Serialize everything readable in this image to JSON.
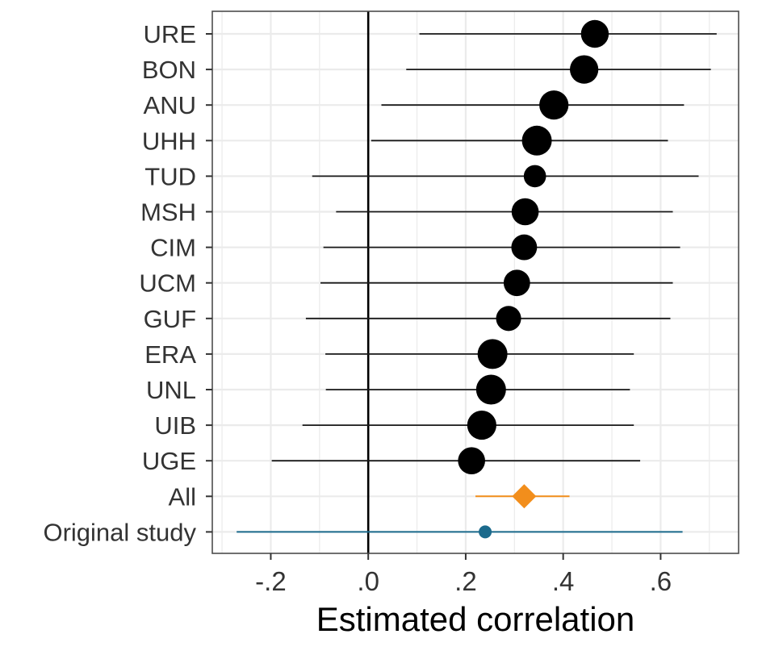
{
  "chart_data": {
    "type": "forest",
    "title": "",
    "xlabel": "Estimated correlation",
    "ylabel": "",
    "xlim": [
      -0.32,
      0.76
    ],
    "x_ticks": [
      {
        "value": -0.2,
        "label": "-.2"
      },
      {
        "value": 0.0,
        "label": ".0"
      },
      {
        "value": 0.2,
        "label": ".2"
      },
      {
        "value": 0.4,
        "label": ".4"
      },
      {
        "value": 0.6,
        "label": ".6"
      }
    ],
    "reference_line": 0,
    "grid": true,
    "legend": "none",
    "rows": [
      {
        "label": "URE",
        "estimate": 0.465,
        "lower": 0.105,
        "upper": 0.715,
        "weight": 0.85,
        "kind": "site"
      },
      {
        "label": "BON",
        "estimate": 0.443,
        "lower": 0.078,
        "upper": 0.703,
        "weight": 0.9,
        "kind": "site"
      },
      {
        "label": "ANU",
        "estimate": 0.381,
        "lower": 0.027,
        "upper": 0.648,
        "weight": 0.95,
        "kind": "site"
      },
      {
        "label": "UHH",
        "estimate": 0.346,
        "lower": 0.006,
        "upper": 0.615,
        "weight": 1.0,
        "kind": "site"
      },
      {
        "label": "TUD",
        "estimate": 0.342,
        "lower": -0.115,
        "upper": 0.678,
        "weight": 0.45,
        "kind": "site"
      },
      {
        "label": "MSH",
        "estimate": 0.322,
        "lower": -0.066,
        "upper": 0.625,
        "weight": 0.8,
        "kind": "site"
      },
      {
        "label": "CIM",
        "estimate": 0.32,
        "lower": -0.092,
        "upper": 0.64,
        "weight": 0.7,
        "kind": "site"
      },
      {
        "label": "UCM",
        "estimate": 0.305,
        "lower": -0.098,
        "upper": 0.625,
        "weight": 0.75,
        "kind": "site"
      },
      {
        "label": "GUF",
        "estimate": 0.288,
        "lower": -0.128,
        "upper": 0.62,
        "weight": 0.65,
        "kind": "site"
      },
      {
        "label": "ERA",
        "estimate": 0.255,
        "lower": -0.088,
        "upper": 0.545,
        "weight": 1.0,
        "kind": "site"
      },
      {
        "label": "UNL",
        "estimate": 0.252,
        "lower": -0.087,
        "upper": 0.537,
        "weight": 1.0,
        "kind": "site"
      },
      {
        "label": "UIB",
        "estimate": 0.233,
        "lower": -0.135,
        "upper": 0.545,
        "weight": 0.95,
        "kind": "site"
      },
      {
        "label": "UGE",
        "estimate": 0.212,
        "lower": -0.198,
        "upper": 0.558,
        "weight": 0.8,
        "kind": "site"
      },
      {
        "label": "All",
        "estimate": 0.32,
        "lower": 0.22,
        "upper": 0.413,
        "weight": 1.0,
        "kind": "summary"
      },
      {
        "label": "Original study",
        "estimate": 0.24,
        "lower": -0.27,
        "upper": 0.645,
        "weight": 0.5,
        "kind": "original"
      }
    ],
    "colors": {
      "site": "#000000",
      "summary": "#f28e1c",
      "original": "#1b6a8c",
      "grid": "#ebebeb",
      "panel_border": "#4d4d4d",
      "reference": "#000000",
      "site_interval": "#1a1a1a"
    }
  }
}
